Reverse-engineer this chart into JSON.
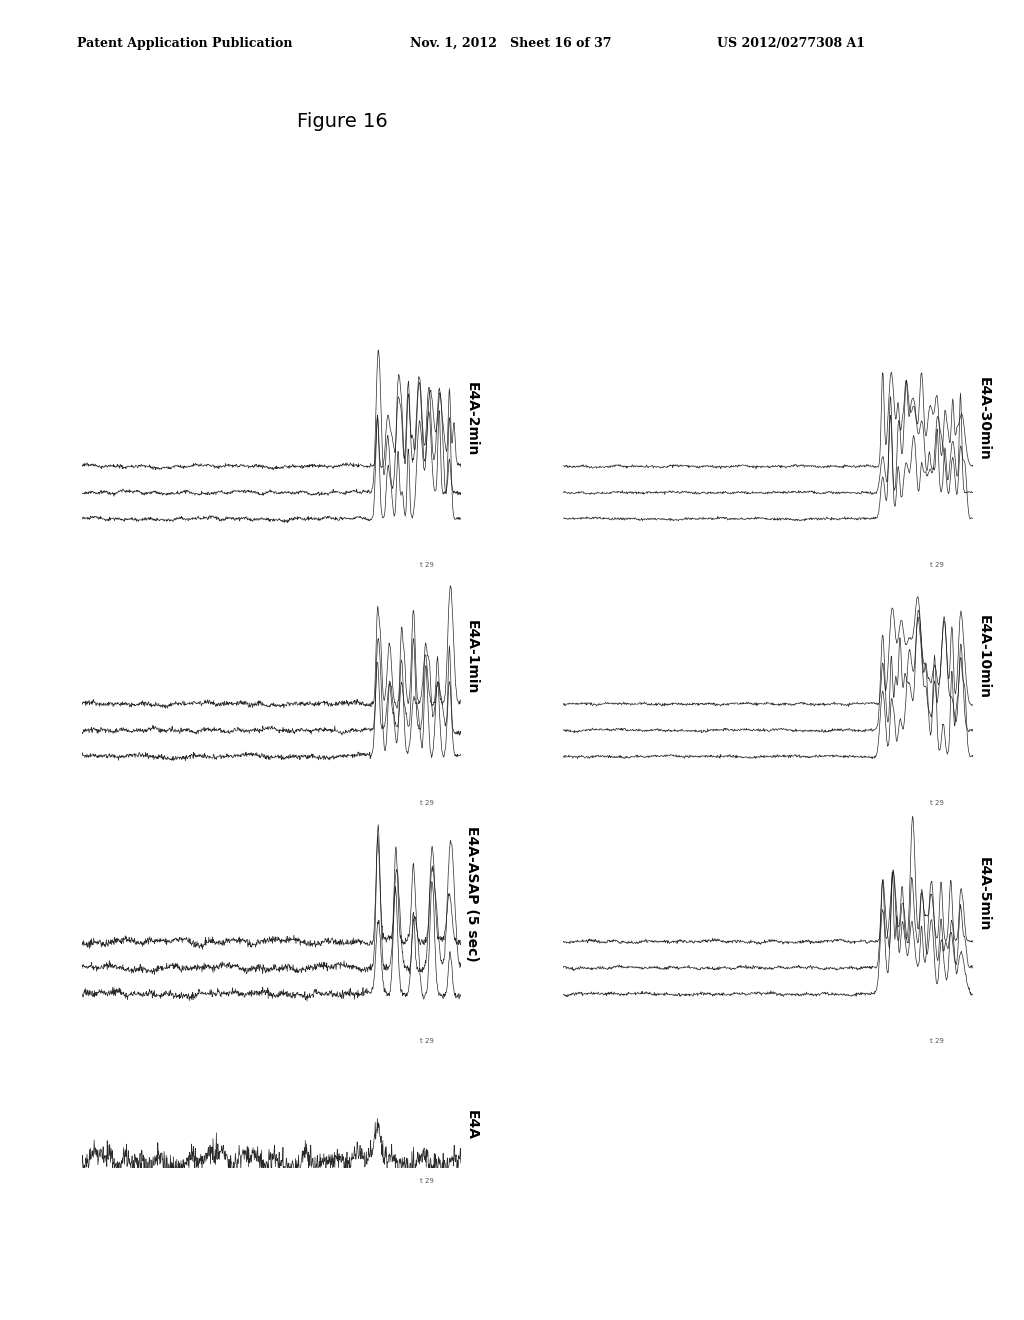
{
  "title": "Figure 16",
  "header_left": "Patent Application Publication",
  "header_mid": "Nov. 1, 2012   Sheet 16 of 37",
  "header_right": "US 2012/0277308 A1",
  "background_color": "#ffffff",
  "panels": [
    {
      "label": "E4A",
      "col": 0,
      "row": 0,
      "n_traces": 1,
      "peak_scale": 0.05,
      "peak_count": 1
    },
    {
      "label": "E4A-ASAP (5 sec)",
      "col": 0,
      "row": 1,
      "n_traces": 3,
      "peak_scale": 0.35,
      "peak_count": 5
    },
    {
      "label": "E4A-1min",
      "col": 0,
      "row": 2,
      "n_traces": 3,
      "peak_scale": 0.55,
      "peak_count": 7
    },
    {
      "label": "E4A-2min",
      "col": 0,
      "row": 3,
      "n_traces": 3,
      "peak_scale": 0.75,
      "peak_count": 8
    },
    {
      "label": "E4A-5min",
      "col": 1,
      "row": 1,
      "n_traces": 3,
      "peak_scale": 0.85,
      "peak_count": 9
    },
    {
      "label": "E4A-10min",
      "col": 1,
      "row": 2,
      "n_traces": 3,
      "peak_scale": 1.0,
      "peak_count": 10
    },
    {
      "label": "E4A-30min",
      "col": 1,
      "row": 3,
      "n_traces": 3,
      "peak_scale": 1.1,
      "peak_count": 11
    }
  ]
}
